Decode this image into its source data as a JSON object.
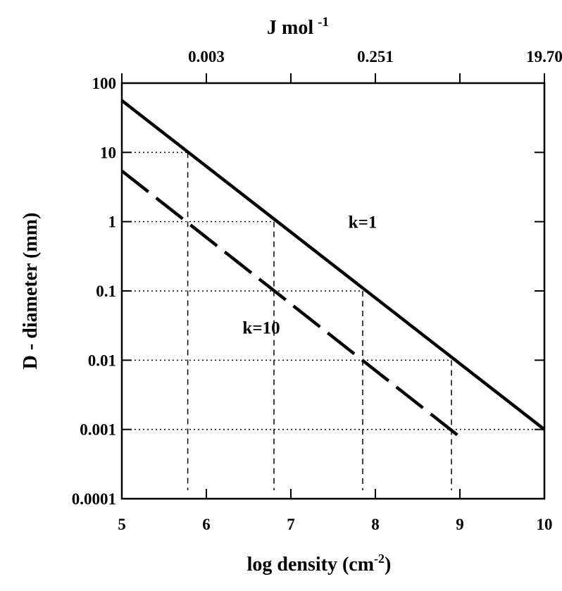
{
  "chart_data": {
    "type": "line",
    "x": [
      5,
      10
    ],
    "xlim": [
      5,
      10
    ],
    "ylim": [
      0.0001,
      100
    ],
    "yscale": "log",
    "grid": false,
    "xlabel": "log density (cm",
    "xlabel_sup": "-2",
    "xlabel_end": ")",
    "ylabel": "D - diameter (mm)",
    "top_axis_label": "J mol",
    "top_axis_label_sup": "-1",
    "x_ticks": [
      "5",
      "6",
      "7",
      "8",
      "9",
      "10"
    ],
    "y_ticks": [
      "0.0001",
      "0.001",
      "0.01",
      "0.1",
      "1",
      "10",
      "100"
    ],
    "top_ticks": [
      {
        "x": 6,
        "label": "0.003"
      },
      {
        "x": 8,
        "label": "0.251"
      },
      {
        "x": 10,
        "label": "19.70"
      }
    ],
    "series": [
      {
        "name": "k=1",
        "style": "solid",
        "points": [
          [
            5,
            56
          ],
          [
            10,
            0.001
          ]
        ]
      },
      {
        "name": "k=10",
        "style": "dashed",
        "points": [
          [
            5,
            5.4
          ],
          [
            9,
            0.00078
          ]
        ]
      }
    ],
    "guide_points": [
      {
        "x": 5.78,
        "y": 10
      },
      {
        "x": 6.8,
        "y": 1
      },
      {
        "x": 7.85,
        "y": 0.1
      },
      {
        "x": 8.9,
        "y": 0.01
      },
      {
        "x": 10,
        "y": 0.001
      }
    ],
    "guide_points_k10": [
      {
        "x": 5.78,
        "y": 1
      },
      {
        "x": 6.8,
        "y": 0.1
      },
      {
        "x": 7.85,
        "y": 0.01
      },
      {
        "x": 8.9,
        "y": 0.001
      }
    ],
    "annotations": [
      {
        "text": "k=1",
        "x": 7.85,
        "y": 1
      },
      {
        "text": "k=10",
        "x": 6.65,
        "y": 0.03
      }
    ],
    "colors": {
      "line": "#000000",
      "background": "#ffffff"
    }
  }
}
